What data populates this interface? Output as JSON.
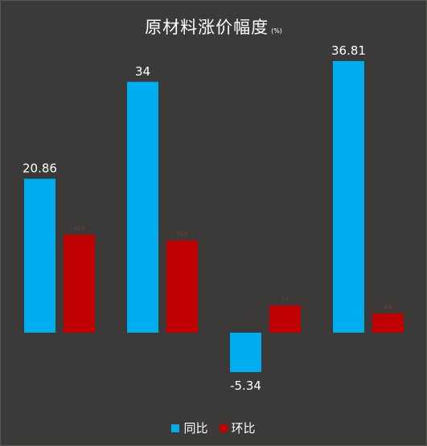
{
  "chart_data": {
    "type": "bar",
    "title": "原材料涨价幅度",
    "unit": "(%)",
    "categories": [
      "",
      "",
      "",
      ""
    ],
    "series": [
      {
        "name": "同比",
        "values": [
          20.86,
          34,
          -5.34,
          36.81
        ],
        "color": "#00aeef",
        "labels": [
          "20.86",
          "34",
          "-5.34",
          "36.81"
        ]
      },
      {
        "name": "环比",
        "values": [
          13.3,
          12.5,
          3.7,
          2.6
        ],
        "color": "#c00000",
        "labels": [
          "13.3",
          "12.5",
          "3.7",
          "2.6"
        ]
      }
    ],
    "ylim": [
      -6.5,
      41
    ],
    "grid": false,
    "legend_position": "bottom"
  }
}
